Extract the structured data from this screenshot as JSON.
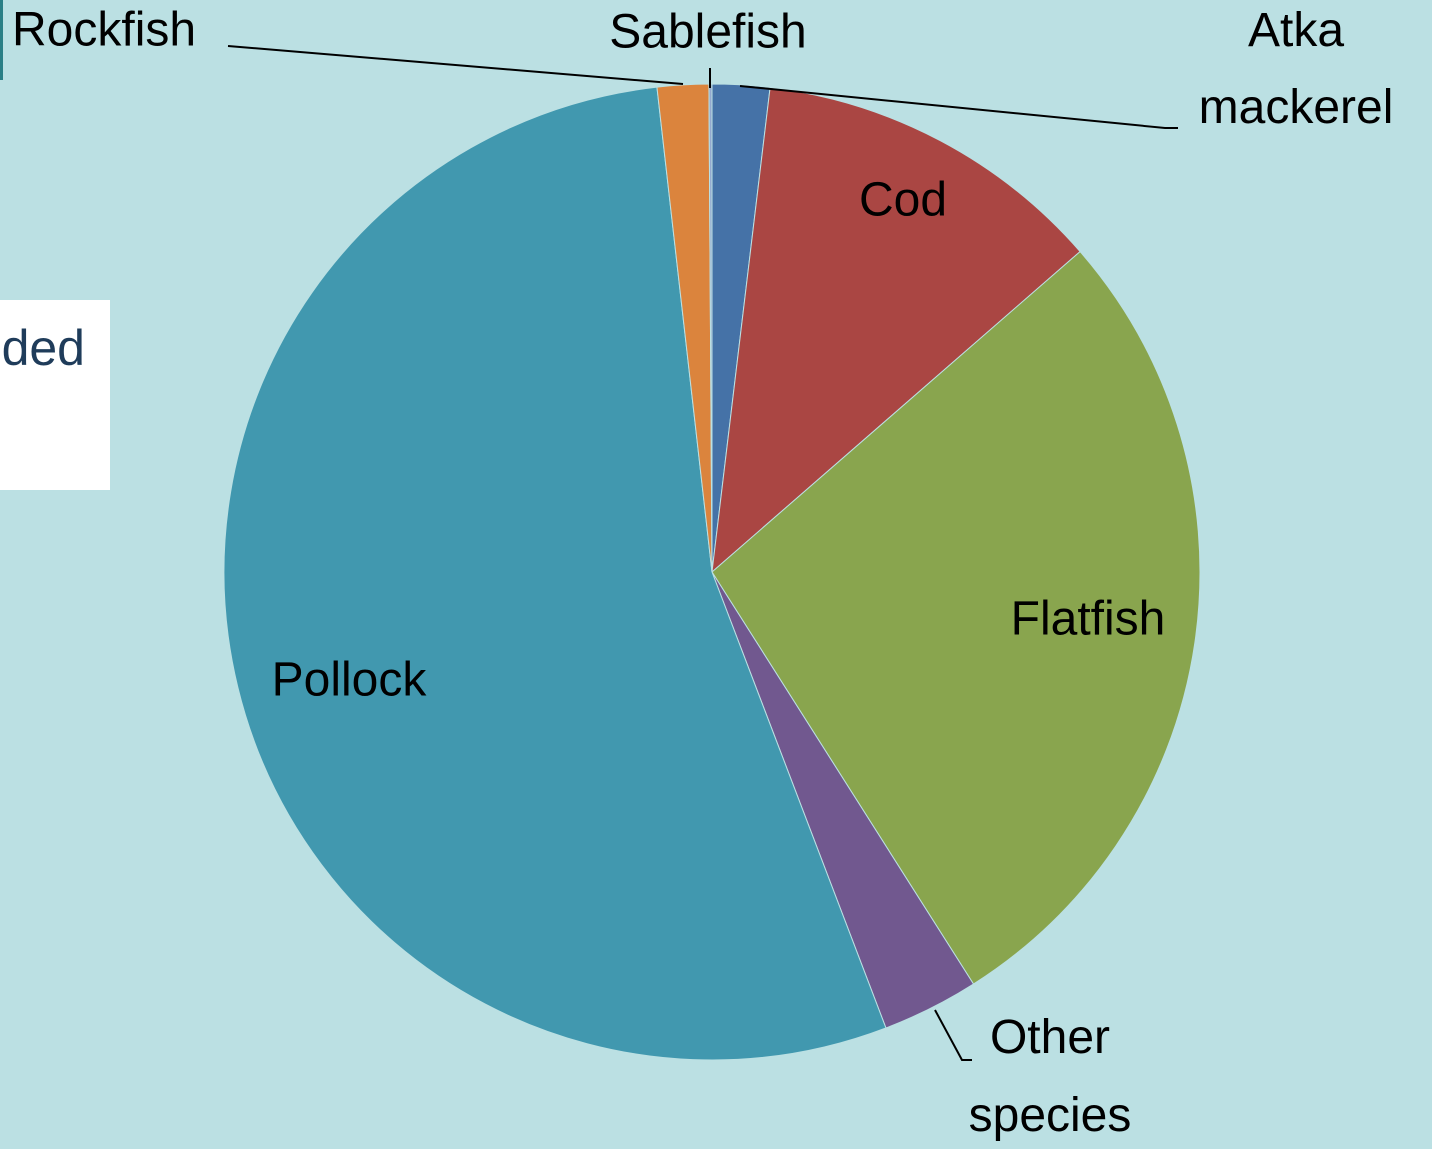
{
  "background_text": "ded",
  "chart_data": {
    "type": "pie",
    "categories": [
      "Atka mackerel",
      "Cod",
      "Flatfish",
      "Other species",
      "Pollock",
      "Rockfish",
      "Sablefish"
    ],
    "values": [
      1.9,
      11.7,
      27.4,
      3.2,
      54.0,
      1.7,
      0.1
    ],
    "colors": [
      "#4572a7",
      "#aa4643",
      "#89a54e",
      "#71588f",
      "#4198af",
      "#db843d",
      "#93a9cf"
    ]
  }
}
